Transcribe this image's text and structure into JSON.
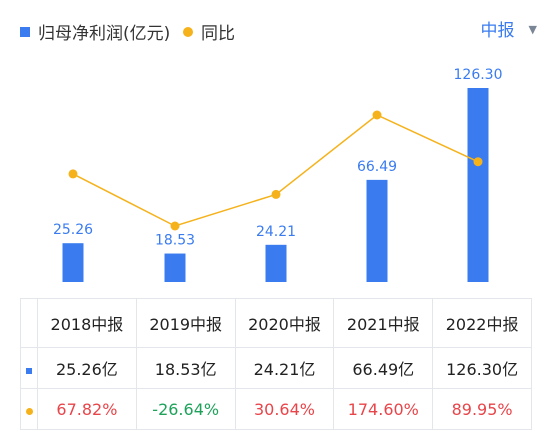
{
  "legend": {
    "bar_label": "归母净利润(亿元)",
    "line_label": "同比"
  },
  "period": {
    "label": "中报"
  },
  "colors": {
    "bar": "#3a7cf0",
    "line": "#f5b21b",
    "positive": "#e8454a",
    "negative": "#1ea25a"
  },
  "chart_data": {
    "type": "bar",
    "categories": [
      "2018中报",
      "2019中报",
      "2020中报",
      "2021中报",
      "2022中报"
    ],
    "series": [
      {
        "name": "归母净利润(亿元)",
        "type": "bar",
        "values": [
          25.26,
          18.53,
          24.21,
          66.49,
          126.3
        ]
      },
      {
        "name": "同比",
        "type": "line",
        "values": [
          67.82,
          -26.64,
          30.64,
          174.6,
          89.95
        ]
      }
    ],
    "bar_labels": [
      "25.26",
      "18.53",
      "24.21",
      "66.49",
      "126.30"
    ]
  },
  "table": {
    "headers": [
      "2018中报",
      "2019中报",
      "2020中报",
      "2021中报",
      "2022中报"
    ],
    "values": [
      "25.26亿",
      "18.53亿",
      "24.21亿",
      "66.49亿",
      "126.30亿"
    ],
    "yoy": [
      "67.82%",
      "-26.64%",
      "30.64%",
      "174.60%",
      "89.95%"
    ]
  }
}
